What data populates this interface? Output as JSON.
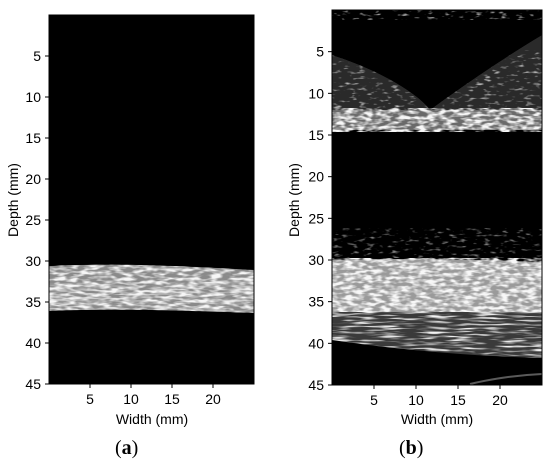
{
  "panels": [
    {
      "id": "a",
      "caption_open": "(",
      "caption_letter": "a",
      "caption_close": ")",
      "ylabel": "Depth (mm)",
      "xlabel": "Width (mm)",
      "x_ticks": [
        "5",
        "10",
        "15",
        "20"
      ],
      "y_ticks": [
        "5",
        "10",
        "15",
        "20",
        "25",
        "30",
        "35",
        "40",
        "45"
      ],
      "x_range_mm": [
        0,
        25
      ],
      "y_range_mm": [
        0,
        45
      ],
      "bright_layers_mm": [
        [
          30.5,
          36.5
        ]
      ]
    },
    {
      "id": "b",
      "caption_open": "(",
      "caption_letter": "b",
      "caption_close": ")",
      "ylabel": "Depth (mm)",
      "xlabel": "Width (mm)",
      "x_ticks": [
        "5",
        "10",
        "15",
        "20"
      ],
      "y_ticks": [
        "5",
        "10",
        "15",
        "20",
        "25",
        "30",
        "35",
        "40",
        "45"
      ],
      "x_range_mm": [
        0,
        25
      ],
      "y_range_mm": [
        0,
        45
      ],
      "bright_layers_mm": [
        [
          11,
          14.2
        ],
        [
          30,
          37
        ],
        [
          37,
          42
        ]
      ]
    }
  ],
  "colors": {
    "image_background": "#000000",
    "speckle": "#e6e6e6",
    "axis": "#000000"
  }
}
